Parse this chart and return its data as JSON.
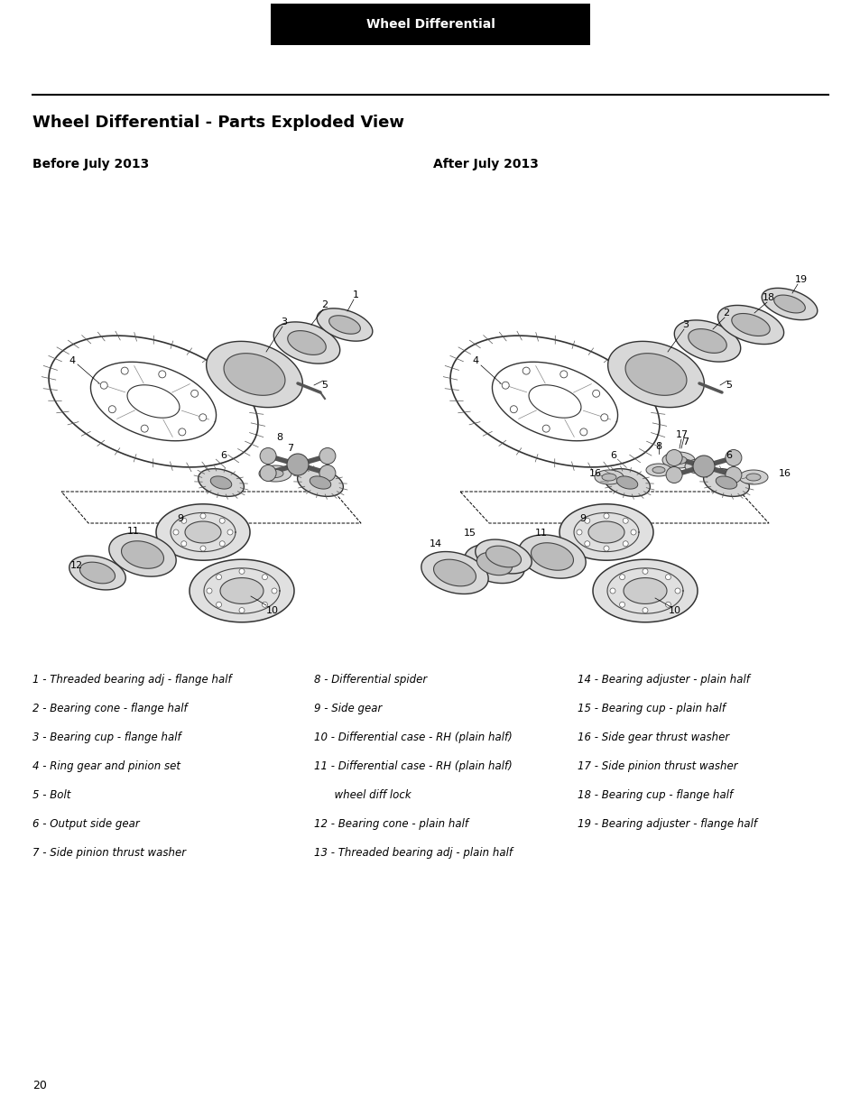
{
  "page_bg": "#ffffff",
  "header_bg": "#000000",
  "header_text": "Wheel Differential",
  "header_text_color": "#ffffff",
  "section_title": "Wheel Differential - Parts Exploded View",
  "before_label": "Before July 2013",
  "after_label": "After July 2013",
  "page_number": "20",
  "parts_col1": [
    "1 - Threaded bearing adj - flange half",
    "2 - Bearing cone - flange half",
    "3 - Bearing cup - flange half",
    "4 - Ring gear and pinion set",
    "5 - Bolt",
    "6 - Output side gear",
    "7 - Side pinion thrust washer"
  ],
  "parts_col2_lines": [
    "8 - Differential spider",
    "9 - Side gear",
    "10 - Differential case - RH (plain half)",
    "11 - Differential case - RH (plain half)",
    "      wheel diff lock",
    "12 - Bearing cone - plain half",
    "13 - Threaded bearing adj - plain half"
  ],
  "parts_col3_lines": [
    "14 - Bearing adjuster - plain half",
    "15 - Bearing cup - plain half",
    "16 - Side gear thrust washer",
    "17 - Side pinion thrust washer",
    "18 - Bearing cup - flange half",
    "19 - Bearing adjuster - flange half"
  ]
}
